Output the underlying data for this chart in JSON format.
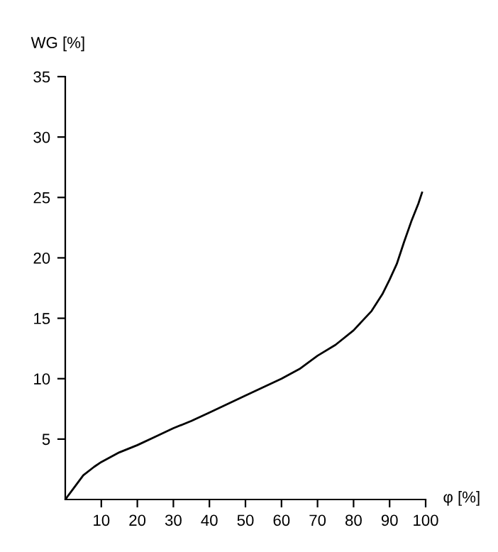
{
  "chart_data": {
    "type": "line",
    "xlabel": "φ [%]",
    "ylabel": "WG [%]",
    "x": [
      0,
      2,
      5,
      8,
      10,
      15,
      20,
      25,
      30,
      35,
      40,
      50,
      60,
      65,
      70,
      75,
      80,
      85,
      88,
      90,
      92,
      94,
      96,
      98,
      99
    ],
    "series": [
      {
        "color": "#000000",
        "values": [
          0,
          0.8,
          2,
          2.7,
          3.1,
          3.9,
          4.5,
          5.2,
          5.9,
          6.5,
          7.2,
          8.6,
          10,
          10.8,
          11.9,
          12.8,
          14,
          15.6,
          17,
          18.2,
          19.5,
          21.3,
          23,
          24.5,
          25.4
        ]
      }
    ],
    "xlim": [
      0,
      100
    ],
    "ylim": [
      0,
      35
    ],
    "xticks": [
      10,
      20,
      30,
      40,
      50,
      60,
      70,
      80,
      90,
      100
    ],
    "yticks": [
      5,
      10,
      15,
      20,
      25,
      30,
      35
    ],
    "grid": false,
    "legend": false,
    "line_style": "solid",
    "marker": "none"
  }
}
